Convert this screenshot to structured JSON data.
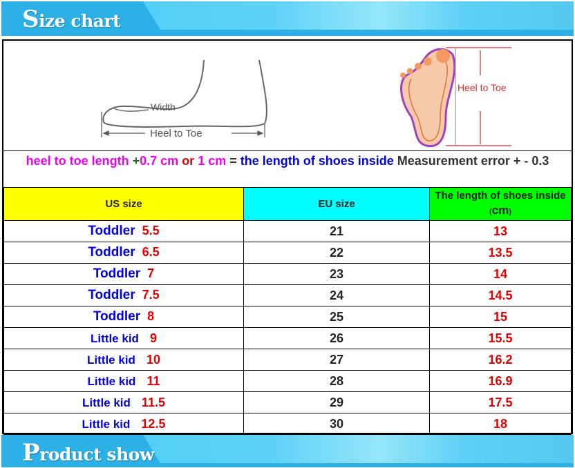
{
  "header_banner": {
    "title": "Size chart"
  },
  "footer_banner": {
    "title": "Product show"
  },
  "illustration": {
    "side_width_label": "Width",
    "side_length_label": "Heel to Toe",
    "sole_label": "Heel to Toe"
  },
  "formula": {
    "part1": "heel to toe length ",
    "part2": "+",
    "part3": "0.7 cm ",
    "part4": "or ",
    "part5": "1 cm ",
    "part6": "= ",
    "part7": "the length of shoes inside ",
    "part8": "Measurement error + -  0.3"
  },
  "table": {
    "headers": {
      "us": "US size",
      "eu": "EU size",
      "len": "The length of shoes inside ",
      "len_unit": "cm"
    },
    "rows": [
      {
        "label": "Toddler",
        "us": "5.5",
        "eu": "21",
        "cm": "13"
      },
      {
        "label": "Toddler",
        "us": "6.5",
        "eu": "22",
        "cm": "13.5"
      },
      {
        "label": "Toddler",
        "us": "7",
        "eu": "23",
        "cm": "14"
      },
      {
        "label": "Toddler",
        "us": "7.5",
        "eu": "24",
        "cm": "14.5"
      },
      {
        "label": "Toddler",
        "us": "8",
        "eu": "25",
        "cm": "15"
      },
      {
        "label": "Little kid",
        "us": "9",
        "eu": "26",
        "cm": "15.5"
      },
      {
        "label": "Little kid",
        "us": "10",
        "eu": "27",
        "cm": "16.2"
      },
      {
        "label": "Little kid",
        "us": "11",
        "eu": "28",
        "cm": "16.9"
      },
      {
        "label": "Little kid",
        "us": "11.5",
        "eu": "29",
        "cm": "17.5"
      },
      {
        "label": "Little kid",
        "us": "12.5",
        "eu": "30",
        "cm": "18"
      }
    ]
  }
}
